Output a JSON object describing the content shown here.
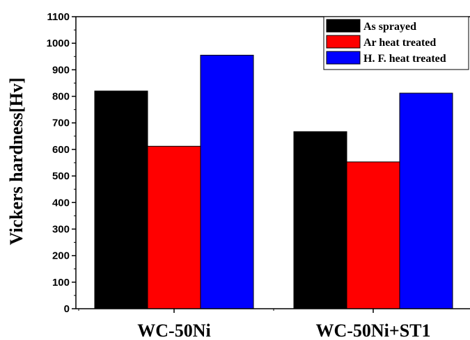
{
  "chart_data": {
    "type": "bar",
    "title": "",
    "xlabel": "",
    "ylabel": "Vickers hardness[Hv]",
    "categories": [
      "WC-50Ni",
      "WC-50Ni+ST1"
    ],
    "ylim": [
      0,
      1100
    ],
    "yticks": [
      0,
      100,
      200,
      300,
      400,
      500,
      600,
      700,
      800,
      900,
      1000,
      1100
    ],
    "grid": false,
    "legend_position": "top-right",
    "series": [
      {
        "name": "As sprayed",
        "color": "#000000",
        "values": [
          820,
          667
        ]
      },
      {
        "name": "Ar heat treated",
        "color": "#ff0000",
        "values": [
          612,
          553
        ]
      },
      {
        "name": "H. F. heat treated",
        "color": "#0000ff",
        "values": [
          955,
          812
        ]
      }
    ]
  }
}
